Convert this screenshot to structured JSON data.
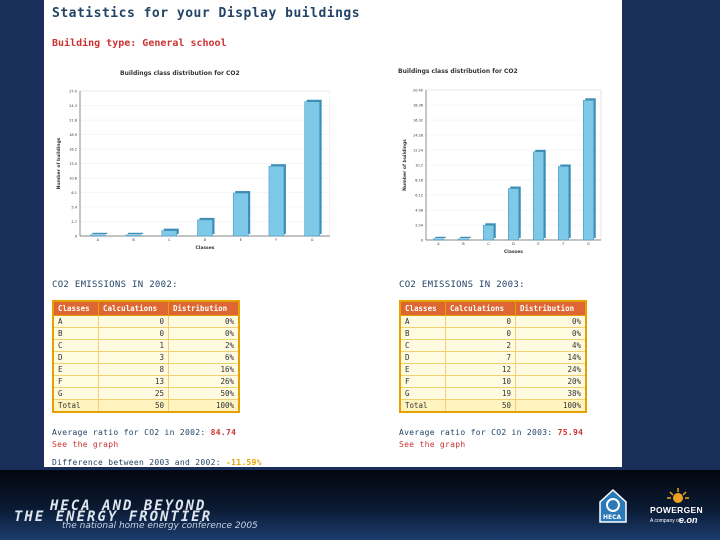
{
  "page": {
    "title": "Statistics for your Display buildings",
    "building_type": "Building type: General school"
  },
  "chart_data": [
    {
      "type": "bar",
      "title": "Buildings class distribution for CO2",
      "xlabel": "Classes",
      "ylabel": "Number of buildings",
      "categories": [
        "A",
        "B",
        "C",
        "D",
        "E",
        "F",
        "G"
      ],
      "values": [
        0,
        0,
        1,
        3,
        8,
        13,
        25
      ],
      "ylim": [
        0,
        27
      ],
      "yticks": [
        "0",
        "2.7",
        "5.4",
        "8.1",
        "10.8",
        "13.5",
        "16.2",
        "18.9",
        "21.6",
        "24.3",
        "27.0"
      ]
    },
    {
      "type": "bar",
      "title": "Buildings class distribution for CO2",
      "xlabel": "Classes",
      "ylabel": "Number of buildings",
      "categories": [
        "A",
        "B",
        "C",
        "D",
        "E",
        "F",
        "G"
      ],
      "values": [
        0,
        0,
        2,
        7,
        12,
        10,
        19
      ],
      "ylim": [
        0,
        20.4
      ],
      "yticks": [
        "0",
        "2.04",
        "4.08",
        "6.12",
        "8.16",
        "10.2",
        "12.24",
        "14.28",
        "16.32",
        "18.36",
        "20.40"
      ]
    }
  ],
  "col2002": {
    "heading": "CO2 EMISSIONS IN 2002:",
    "table": {
      "headers": [
        "Classes",
        "Calculations",
        "Distribution"
      ],
      "rows": [
        [
          "A",
          "0",
          "0%"
        ],
        [
          "B",
          "0",
          "0%"
        ],
        [
          "C",
          "1",
          "2%"
        ],
        [
          "D",
          "3",
          "6%"
        ],
        [
          "E",
          "8",
          "16%"
        ],
        [
          "F",
          "13",
          "26%"
        ],
        [
          "G",
          "25",
          "50%"
        ]
      ],
      "total": [
        "Total",
        "50",
        "100%"
      ]
    },
    "avg_label": "Average ratio for CO2 in 2002:",
    "avg_value": "84.74",
    "graph_link": "See the graph"
  },
  "col2003": {
    "heading": "CO2 EMISSIONS IN 2003:",
    "table": {
      "headers": [
        "Classes",
        "Calculations",
        "Distribution"
      ],
      "rows": [
        [
          "A",
          "0",
          "0%"
        ],
        [
          "B",
          "0",
          "0%"
        ],
        [
          "C",
          "2",
          "4%"
        ],
        [
          "D",
          "7",
          "14%"
        ],
        [
          "E",
          "12",
          "24%"
        ],
        [
          "F",
          "10",
          "20%"
        ],
        [
          "G",
          "19",
          "38%"
        ]
      ],
      "total": [
        "Total",
        "50",
        "100%"
      ]
    },
    "avg_label": "Average ratio for CO2 in 2003:",
    "avg_value": "75.94",
    "graph_link": "See the graph"
  },
  "difference": {
    "label": "Difference between 2003 and 2002:",
    "value": "-11.59%"
  },
  "footer": {
    "line1": "HECA AND BEYOND",
    "line2": "THE ENERGY FRONTIER",
    "line3": "the national home energy conference 2005",
    "heca_logo_text": "HECA",
    "pg_name": "POWERGEN",
    "pg_sub": "A company of",
    "pg_eon": "e.on"
  },
  "colors": {
    "bar": "#7ec8e8",
    "bar_dark": "#3e8fb8",
    "accent": "#c33",
    "table_border": "#e8a000",
    "header_bg": "#d63"
  }
}
